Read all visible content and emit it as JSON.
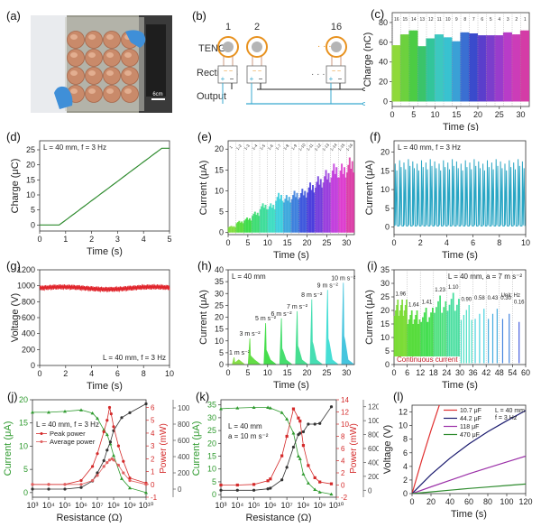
{
  "panels": {
    "a": {
      "label": "(a)",
      "scale_bar": "6cm"
    },
    "b": {
      "label": "(b)",
      "row_labels": [
        "TENGs",
        "Rectifiers",
        "Output"
      ],
      "units": [
        "1",
        "2",
        "16"
      ],
      "ellipsis": "· · ·",
      "plus": "+",
      "minus": "−",
      "ac": "~ ~"
    },
    "c": {
      "label": "(c)"
    },
    "d": {
      "label": "(d)"
    },
    "e": {
      "label": "(e)"
    },
    "f": {
      "label": "(f)"
    },
    "g": {
      "label": "(g)"
    },
    "h": {
      "label": "(h)"
    },
    "i": {
      "label": "(i)"
    },
    "j": {
      "label": "(j)"
    },
    "k": {
      "label": "(k)"
    },
    "l": {
      "label": "(l)"
    }
  },
  "chart_data": [
    {
      "id": "c",
      "type": "bar",
      "title": "",
      "xlabel": "Time (s)",
      "ylabel": "Charge (nC)",
      "xlim": [
        0,
        32
      ],
      "ylim": [
        -5,
        90
      ],
      "xticks": [
        0,
        5,
        10,
        15,
        20,
        25,
        30
      ],
      "yticks": [
        0,
        20,
        40,
        60,
        80
      ],
      "segment_labels": [
        "16",
        "15",
        "14",
        "13",
        "12",
        "11",
        "10",
        "9",
        "8",
        "7",
        "6",
        "5",
        "4",
        "3",
        "2",
        "1"
      ],
      "segment_values": [
        57,
        68,
        72,
        56,
        64,
        68,
        65,
        61,
        70,
        69,
        67,
        67,
        67,
        70,
        68,
        72
      ],
      "segment_colors": [
        "#8fd93a",
        "#6dd13e",
        "#4ccc44",
        "#3bc46a",
        "#33c59a",
        "#3cc8c0",
        "#39c2d0",
        "#3aa0d6",
        "#3a6fd2",
        "#3a4bcc",
        "#5a3fcc",
        "#7b3fcc",
        "#993ccc",
        "#b83cc8",
        "#cc3cb8",
        "#d43ca6"
      ],
      "grid": "vertical-dotted"
    },
    {
      "id": "d",
      "type": "line",
      "xlabel": "Time (s)",
      "ylabel": "Charge (μC)",
      "annotation": "L = 40 mm, f = 3 Hz",
      "xlim": [
        0,
        5
      ],
      "ylim": [
        -2,
        28
      ],
      "xticks": [
        0,
        1,
        2,
        3,
        4,
        5
      ],
      "yticks": [
        0,
        5,
        10,
        15,
        20,
        25
      ],
      "x": [
        0,
        0.75,
        4.7,
        5
      ],
      "y": [
        0,
        0,
        25.5,
        25.5
      ],
      "color": "#2e8b2e"
    },
    {
      "id": "e",
      "type": "line",
      "xlabel": "Time (s)",
      "ylabel": "Current (μA)",
      "xlim": [
        0,
        32
      ],
      "ylim": [
        -0.5,
        22
      ],
      "xticks": [
        0,
        5,
        10,
        15,
        20,
        25,
        30
      ],
      "yticks": [
        0,
        5,
        10,
        15,
        20
      ],
      "segment_labels": [
        "1",
        "1-2",
        "1-3",
        "1-4",
        "1-5",
        "1-6",
        "1-7",
        "1-8",
        "1-9",
        "1-10",
        "1-11",
        "1-12",
        "1-13",
        "1-14",
        "1-15",
        "1-16"
      ],
      "segment_peaks": [
        1.6,
        2.8,
        3.6,
        5,
        7,
        7,
        9.5,
        9,
        10,
        10.5,
        12,
        13.5,
        15,
        16.5,
        16.5,
        18
      ]
    },
    {
      "id": "f",
      "type": "line",
      "xlabel": "Time (s)",
      "ylabel": "Current (μA)",
      "annotation": "L = 40 mm, f = 3 Hz",
      "xlim": [
        0,
        10
      ],
      "ylim": [
        -2,
        23
      ],
      "xticks": [
        0,
        2,
        4,
        6,
        8,
        10
      ],
      "yticks": [
        0,
        5,
        10,
        15,
        20
      ],
      "frequency_hz": 3,
      "peak": 17.5,
      "base": 0.3,
      "color": "#2aa6c4"
    },
    {
      "id": "g",
      "type": "line",
      "xlabel": "Time (s)",
      "ylabel": "Voltage (V)",
      "annotation": "L = 40 mm, f = 3 Hz",
      "xlim": [
        0,
        10
      ],
      "ylim": [
        0,
        1200
      ],
      "xticks": [
        0,
        2,
        4,
        6,
        8,
        10
      ],
      "yticks": [
        0,
        200,
        400,
        600,
        800,
        1000,
        1200
      ],
      "mean": 970,
      "ripple": 40,
      "color": "#e0242b"
    },
    {
      "id": "h",
      "type": "line",
      "xlabel": "Time (s)",
      "ylabel": "Current (μA)",
      "annotation": "L = 40 mm",
      "xlim": [
        0,
        32
      ],
      "ylim": [
        0,
        40
      ],
      "xticks": [
        0,
        5,
        10,
        15,
        20,
        25,
        30
      ],
      "yticks": [
        0,
        5,
        10,
        15,
        20,
        25,
        30,
        35,
        40
      ],
      "pulse_times": [
        1.5,
        5.5,
        9.5,
        13.5,
        17.5,
        21.2,
        25.2,
        29.2
      ],
      "pulse_peaks": [
        3,
        11,
        17.5,
        19.5,
        22.5,
        27.5,
        31.5,
        34.5
      ],
      "pulse_labels": [
        "1 m s⁻²",
        "3 m s⁻²",
        "5 m s⁻²",
        "6 m s⁻²",
        "7 m s⁻²",
        "8 m s⁻²",
        "9 m s⁻²",
        "10 m s⁻²"
      ]
    },
    {
      "id": "i",
      "type": "line",
      "xlabel": "Time (s)",
      "ylabel": "Current (μA)",
      "annotation": "L = 40 mm, a = 7 m s⁻²",
      "unit_note": "Unit: Hz",
      "continuous_label": "Continuous current",
      "xlim": [
        0,
        60
      ],
      "ylim": [
        0,
        35
      ],
      "xticks": [
        0,
        6,
        12,
        18,
        24,
        30,
        36,
        42,
        48,
        54,
        60
      ],
      "yticks": [
        0,
        5,
        10,
        15,
        20,
        25,
        30,
        35
      ],
      "segment_freqs": [
        "1.96",
        "1.64",
        "1.41",
        "1.23",
        "1.10",
        "0.90",
        "0.58",
        "0.43",
        "0.30",
        "0.16"
      ],
      "segment_peaks": [
        24,
        20,
        21,
        25.5,
        26.5,
        22,
        22.5,
        22.5,
        22.5,
        21
      ]
    },
    {
      "id": "j",
      "type": "line",
      "xlabel": "Resistance (Ω)",
      "ylabel_left": "Current (μA)",
      "ylabel_right1": "Power (mW)",
      "ylabel_right2": "Voltage (V)",
      "annotation": "L = 40 mm, f = 3 Hz",
      "xscale": "log",
      "xlim_exp": [
        3,
        10
      ],
      "xtick_labels": [
        "10³",
        "10⁴",
        "10⁵",
        "10⁶",
        "10⁷",
        "10⁸",
        "10⁹",
        "10¹⁰"
      ],
      "ylim_left": [
        -1,
        20
      ],
      "yticks_left": [
        0,
        5,
        10,
        15,
        20
      ],
      "ylim_right1": [
        -1,
        6.6
      ],
      "yticks_right1": [
        -1,
        0,
        1,
        2,
        3,
        4,
        5,
        6
      ],
      "ylim_right2": [
        -100,
        1100
      ],
      "yticks_right2": [
        0,
        200,
        400,
        600,
        800,
        1000
      ],
      "series": [
        {
          "name": "Current",
          "axis": "left",
          "color": "#2e9a2e",
          "marker": "triangle",
          "x_exp": [
            3,
            4,
            5,
            6,
            6.7,
            7,
            7.4,
            7.6,
            7.8,
            8,
            8.5,
            9,
            10
          ],
          "values": [
            17.3,
            17.3,
            17.5,
            17.8,
            17.1,
            16,
            13.5,
            12.5,
            10.5,
            8,
            3,
            1,
            0
          ]
        },
        {
          "name": "Voltage",
          "axis": "right2",
          "color": "#333333",
          "marker": "diamond",
          "x_exp": [
            3,
            4,
            5,
            6,
            6.7,
            7,
            7.4,
            7.6,
            7.8,
            8,
            8.5,
            9,
            10
          ],
          "values": [
            0,
            0,
            0,
            20,
            100,
            200,
            350,
            480,
            580,
            720,
            880,
            940,
            1050
          ]
        },
        {
          "name": "Peak power",
          "axis": "right1",
          "color": "#d42a2a",
          "marker": "circle",
          "x_exp": [
            3,
            4,
            5,
            6,
            6.7,
            7,
            7.4,
            7.6,
            7.75,
            7.85,
            8,
            8.3,
            8.6,
            9,
            10
          ],
          "values": [
            0,
            0,
            0,
            0.3,
            1.4,
            2.4,
            4.1,
            5,
            6,
            5.5,
            4.5,
            3,
            1.8,
            0.5,
            0.1
          ]
        },
        {
          "name": "Average power",
          "axis": "right1",
          "color": "#e06060",
          "marker": "star",
          "x_exp": [
            3,
            4,
            5,
            6,
            6.7,
            7,
            7.4,
            7.6,
            7.75,
            7.9,
            8,
            8.3,
            8.6,
            9,
            10
          ],
          "values": [
            0,
            0,
            0,
            0,
            0.3,
            0.7,
            1.4,
            1.7,
            1.9,
            2,
            1.9,
            1.5,
            0.9,
            0.3,
            0
          ]
        }
      ],
      "legend": [
        "Peak power",
        "Average power"
      ],
      "legend_position": "top-left"
    },
    {
      "id": "k",
      "type": "line",
      "xlabel": "Resistance (Ω)",
      "ylabel_left": "Current (μA)",
      "ylabel_right1": "Power (mW)",
      "ylabel_right2": "Voltage (V)",
      "annotation": [
        "L = 40 mm",
        "a = 10 m s⁻²"
      ],
      "xscale": "log",
      "xlim_exp": [
        3,
        10
      ],
      "xtick_labels": [
        "10³",
        "10⁴",
        "10⁵",
        "10⁶",
        "10⁷",
        "10⁸",
        "10⁹",
        "10¹⁰"
      ],
      "ylim_left": [
        -1,
        37
      ],
      "yticks_left": [
        0,
        5,
        10,
        15,
        20,
        25,
        30,
        35
      ],
      "ylim_right1": [
        -2,
        14
      ],
      "yticks_right1": [
        -2,
        0,
        2,
        4,
        6,
        8,
        10,
        12,
        14
      ],
      "ylim_right2": [
        -100,
        1300
      ],
      "yticks_right2": [
        0,
        200,
        400,
        600,
        800,
        1000,
        1200
      ],
      "series": [
        {
          "name": "Current",
          "axis": "left",
          "color": "#2e9a2e",
          "marker": "triangle",
          "x_exp": [
            3,
            4,
            5,
            5.85,
            6,
            6.7,
            7,
            7.4,
            7.7,
            7.8,
            8,
            8.3,
            8.7,
            9,
            9.7
          ],
          "values": [
            33.5,
            33.8,
            34,
            34,
            33.8,
            32,
            29.5,
            24,
            15,
            14,
            8,
            4.5,
            2,
            1,
            0.2
          ]
        },
        {
          "name": "Voltage",
          "axis": "right2",
          "color": "#333333",
          "marker": "diamond",
          "x_exp": [
            3,
            4,
            5,
            5.85,
            6,
            6.7,
            7,
            7.4,
            7.7,
            7.8,
            8,
            8.3,
            8.7,
            9,
            9.7
          ],
          "values": [
            0,
            0,
            0,
            20,
            30,
            150,
            330,
            620,
            800,
            820,
            840,
            950,
            950,
            960,
            1200
          ]
        },
        {
          "name": "Power",
          "axis": "right1",
          "color": "#d42a2a",
          "marker": "square",
          "x_exp": [
            3,
            4,
            5,
            5.85,
            6,
            6.7,
            7,
            7.4,
            7.7,
            7.8,
            8,
            8.3,
            8.7,
            9,
            9.7
          ],
          "values": [
            0,
            0,
            0.1,
            0.7,
            1,
            4.8,
            8,
            12.5,
            11,
            10.5,
            6.5,
            3.2,
            1.2,
            0.5,
            0.2
          ]
        }
      ]
    },
    {
      "id": "l",
      "type": "line",
      "xlabel": "Time (s)",
      "ylabel": "Voltage (V)",
      "annotation": [
        "L = 40 mm",
        "f = 3 Hz"
      ],
      "xlim": [
        0,
        120
      ],
      "ylim": [
        0,
        13
      ],
      "xticks": [
        0,
        20,
        40,
        60,
        80,
        100,
        120
      ],
      "yticks": [
        0,
        2,
        4,
        6,
        8,
        10,
        12
      ],
      "series": [
        {
          "name": "10.7 μF",
          "color": "#e03030",
          "x": [
            0,
            10,
            20,
            30
          ],
          "values": [
            0,
            4.8,
            9.3,
            13.5
          ]
        },
        {
          "name": "44.2 μF",
          "color": "#1a1a6e",
          "x": [
            0,
            20,
            40,
            60,
            80,
            100,
            120
          ],
          "values": [
            0,
            2.8,
            5.2,
            7.3,
            9.1,
            10.7,
            12.2
          ]
        },
        {
          "name": "118 μF",
          "color": "#9b30a8",
          "x": [
            0,
            20,
            40,
            60,
            80,
            100,
            120
          ],
          "values": [
            0,
            1.0,
            1.95,
            2.9,
            3.8,
            4.65,
            5.5
          ]
        },
        {
          "name": "470 μF",
          "color": "#2e8b2e",
          "x": [
            0,
            20,
            40,
            60,
            80,
            100,
            120
          ],
          "values": [
            0,
            0.25,
            0.5,
            0.75,
            0.97,
            1.2,
            1.4
          ]
        }
      ],
      "legend_position": "top-left"
    }
  ]
}
